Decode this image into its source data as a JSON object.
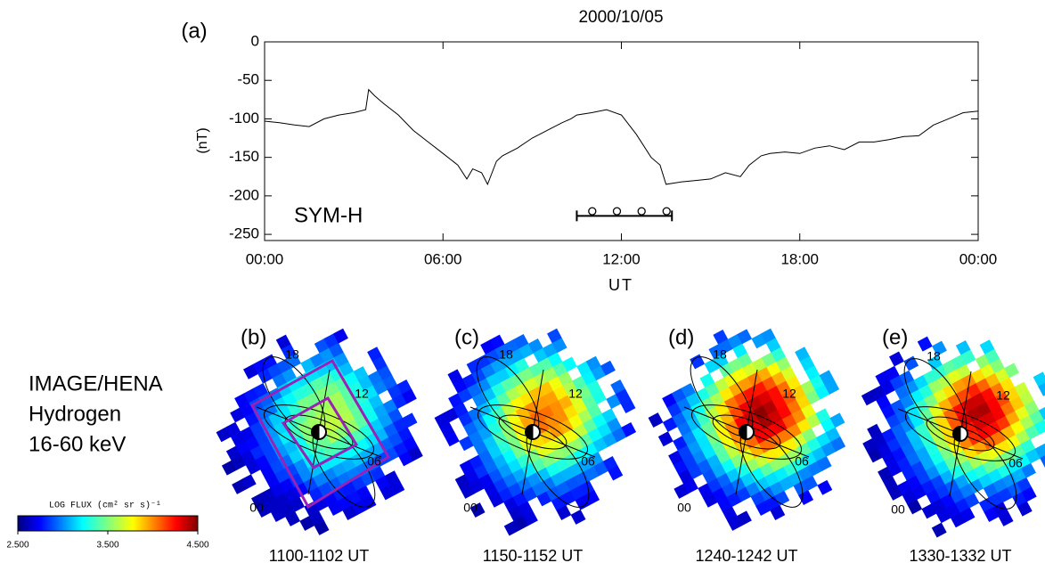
{
  "chart_data": {
    "type": "line",
    "panel_label": "(a)",
    "title": "2000/10/05",
    "y_label": "(nT)",
    "x_label": "UT",
    "annotation": "SYM-H",
    "x": [
      0,
      0.5,
      1,
      1.5,
      2,
      2.5,
      3,
      3.4,
      3.5,
      3.7,
      4,
      4.5,
      5,
      5.5,
      6,
      6.5,
      6.8,
      7,
      7.3,
      7.5,
      7.8,
      8,
      8.5,
      9,
      9.5,
      10,
      10.3,
      10.5,
      11,
      11.5,
      12,
      12.5,
      13,
      13.3,
      13.5,
      14,
      14.5,
      15,
      15.5,
      16,
      16.3,
      16.7,
      17,
      17.5,
      18,
      18.5,
      19,
      19.5,
      20,
      20.5,
      21,
      21.5,
      22,
      22.5,
      23,
      23.5,
      24
    ],
    "series": [
      {
        "color": "#000000",
        "values": [
          -103,
          -105,
          -108,
          -110,
          -100,
          -95,
          -92,
          -88,
          -62,
          -70,
          -80,
          -95,
          -115,
          -130,
          -145,
          -160,
          -178,
          -165,
          -170,
          -185,
          -155,
          -148,
          -138,
          -125,
          -115,
          -105,
          -100,
          -95,
          -92,
          -88,
          -95,
          -120,
          -150,
          -160,
          -185,
          -182,
          -180,
          -178,
          -170,
          -175,
          -160,
          -148,
          -145,
          -143,
          -145,
          -138,
          -135,
          -140,
          -130,
          -130,
          -127,
          -123,
          -122,
          -108,
          -100,
          -92,
          -90
        ]
      }
    ],
    "xlim": [
      0,
      24
    ],
    "ylim": [
      -258,
      0
    ],
    "xticks": [
      {
        "value": 0,
        "label": "00:00"
      },
      {
        "value": 6,
        "label": "06:00"
      },
      {
        "value": 12,
        "label": "12:00"
      },
      {
        "value": 18,
        "label": "18:00"
      },
      {
        "value": 24,
        "label": "00:00"
      }
    ],
    "yticks": [
      0,
      -50,
      -100,
      -150,
      -200,
      -250
    ],
    "interval": [
      10.5,
      13.7
    ],
    "interval_y": -226,
    "image_times": [
      11.02,
      11.85,
      12.68,
      13.52
    ],
    "image_marker_y": -220
  },
  "legend_text": [
    "IMAGE/HENA",
    "Hydrogen",
    "16-60 keV"
  ],
  "colorbar": {
    "title": "LOG FLUX (cm² sr s)⁻¹",
    "lim": [
      2.5,
      4.5
    ],
    "ticks": [
      {
        "value": 2.5,
        "label": "2.500"
      },
      {
        "value": 3.5,
        "label": "3.500"
      },
      {
        "value": 4.5,
        "label": "4.500"
      }
    ]
  },
  "panels": [
    {
      "label": "(b)",
      "time": "1100-1102 UT",
      "mlt": [
        "18",
        "12",
        "06",
        "00"
      ]
    },
    {
      "label": "(c)",
      "time": "1150-1152 UT",
      "mlt": [
        "18",
        "12",
        "06",
        "00"
      ]
    },
    {
      "label": "(d)",
      "time": "1240-1242 UT",
      "mlt": [
        "18",
        "12",
        "06",
        "00"
      ]
    },
    {
      "label": "(e)",
      "time": "1330-1332 UT",
      "mlt": [
        "18",
        "12",
        "06",
        "00"
      ]
    }
  ]
}
